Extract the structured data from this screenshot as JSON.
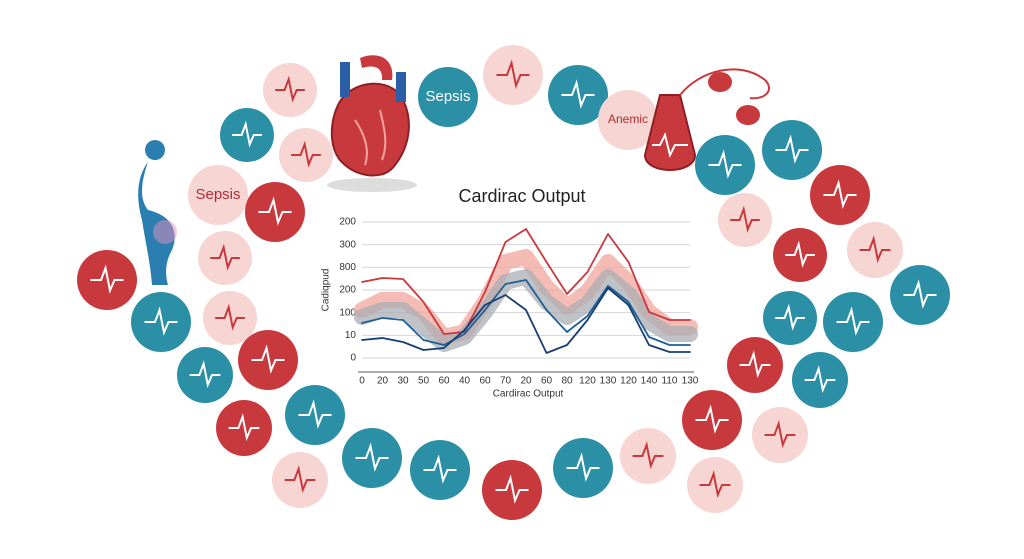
{
  "chart_data": {
    "type": "line",
    "title": "Cardirac Output",
    "x_label": "Cardirac Output",
    "y_label": "Cadiqpud",
    "categories": [
      "0",
      "20",
      "30",
      "50",
      "60",
      "40",
      "60",
      "70",
      "20",
      "60",
      "80",
      "120",
      "130",
      "120",
      "140",
      "110",
      "130"
    ],
    "y_labels": [
      "200",
      "300",
      "800",
      "200",
      "100",
      "10",
      "0"
    ],
    "ylim": [
      0,
      150
    ],
    "grid": true,
    "series": [
      {
        "color": "#f2a59e",
        "style": "band",
        "values": [
          62,
          72,
          72,
          60,
          35,
          40,
          70,
          110,
          115,
          85,
          65,
          80,
          110,
          90,
          60,
          45,
          45
        ]
      },
      {
        "color": "#a9aeb3",
        "style": "band",
        "values": [
          55,
          62,
          62,
          45,
          28,
          35,
          60,
          90,
          95,
          70,
          55,
          68,
          95,
          78,
          50,
          38,
          38
        ]
      },
      {
        "color": "#c8393d",
        "values": [
          90,
          94,
          93,
          70,
          38,
          40,
          80,
          130,
          143,
          110,
          78,
          100,
          138,
          110,
          60,
          52,
          52
        ]
      },
      {
        "color": "#1f5f96",
        "values": [
          49,
          54,
          52,
          32,
          27,
          38,
          62,
          88,
          92,
          62,
          40,
          56,
          86,
          70,
          35,
          27,
          27
        ]
      },
      {
        "color": "#173e73",
        "values": [
          32,
          34,
          30,
          22,
          24,
          42,
          67,
          77,
          62,
          19,
          27,
          52,
          84,
          67,
          27,
          20,
          20
        ]
      }
    ],
    "labels": [
      "Sepsis",
      "Sepsis",
      "Anemic"
    ]
  }
}
